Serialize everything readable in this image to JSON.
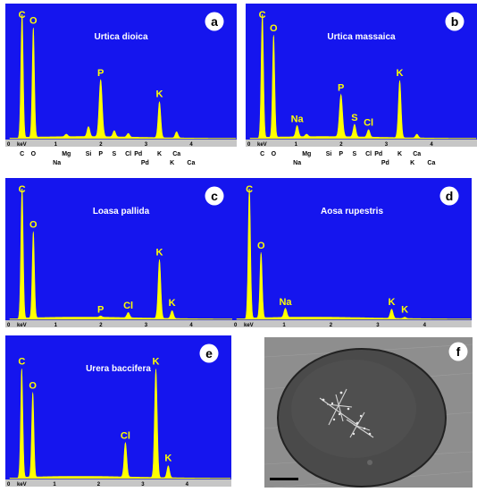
{
  "colors": {
    "plot_bg": "#1515ee",
    "spectrum": "#ffff00",
    "axis_bar": "#c6c6c6",
    "badge_bg": "#ffffff",
    "photo_bg": "#8e8e8e"
  },
  "chart_data": [
    {
      "type": "area",
      "panel_label": "a",
      "title": "Urtica dioica",
      "xlabel": "keV",
      "xlim": [
        0,
        5
      ],
      "x_ticks": [
        "0",
        "1",
        "2",
        "3",
        "4"
      ],
      "peaks": [
        {
          "element": "C",
          "x": 0.27,
          "h": 1.0,
          "w": 0.025
        },
        {
          "element": "O",
          "x": 0.52,
          "h": 0.88,
          "w": 0.025
        },
        {
          "element": "Mg",
          "x": 1.25,
          "h": 0.02,
          "w": 0.03
        },
        {
          "element": "Si",
          "x": 1.74,
          "h": 0.08,
          "w": 0.03
        },
        {
          "element": "P",
          "x": 2.01,
          "h": 0.46,
          "w": 0.035
        },
        {
          "element": "S",
          "x": 2.31,
          "h": 0.05,
          "w": 0.03
        },
        {
          "element": "Cl",
          "x": 2.62,
          "h": 0.03,
          "w": 0.03
        },
        {
          "element": "K",
          "x": 3.31,
          "h": 0.29,
          "w": 0.03
        },
        {
          "element": "Ca",
          "x": 3.69,
          "h": 0.05,
          "w": 0.03
        }
      ],
      "peak_labels": [
        {
          "text": "C",
          "x": 0.27,
          "h": 1.0
        },
        {
          "text": "O",
          "x": 0.52,
          "h": 0.88
        },
        {
          "text": "P",
          "x": 2.01,
          "h": 0.46
        },
        {
          "text": "K",
          "x": 3.31,
          "h": 0.29
        }
      ],
      "marker_row1": [
        {
          "text": "C",
          "x": 0.27
        },
        {
          "text": "O",
          "x": 0.52
        },
        {
          "text": "Mg",
          "x": 1.25
        },
        {
          "text": "Si",
          "x": 1.74
        },
        {
          "text": "P",
          "x": 2.01
        },
        {
          "text": "S",
          "x": 2.31
        },
        {
          "text": "Cl",
          "x": 2.62
        },
        {
          "text": "Pd",
          "x": 2.84
        },
        {
          "text": "K",
          "x": 3.31
        },
        {
          "text": "Ca",
          "x": 3.69
        }
      ],
      "marker_row2": [
        {
          "text": "Na",
          "x": 1.04
        },
        {
          "text": "Pd",
          "x": 2.99
        },
        {
          "text": "K",
          "x": 3.59
        },
        {
          "text": "Ca",
          "x": 4.01
        }
      ]
    },
    {
      "type": "area",
      "panel_label": "b",
      "title": "Urtica massaica",
      "xlabel": "keV",
      "xlim": [
        0,
        5
      ],
      "x_ticks": [
        "0",
        "1",
        "2",
        "3",
        "4"
      ],
      "peaks": [
        {
          "element": "C",
          "x": 0.27,
          "h": 1.0,
          "w": 0.025
        },
        {
          "element": "O",
          "x": 0.52,
          "h": 0.82,
          "w": 0.025
        },
        {
          "element": "Na",
          "x": 1.04,
          "h": 0.09,
          "w": 0.03
        },
        {
          "element": "Mg",
          "x": 1.25,
          "h": 0.02,
          "w": 0.03
        },
        {
          "element": "P",
          "x": 2.01,
          "h": 0.34,
          "w": 0.035
        },
        {
          "element": "S",
          "x": 2.31,
          "h": 0.1,
          "w": 0.03
        },
        {
          "element": "Cl",
          "x": 2.62,
          "h": 0.06,
          "w": 0.03
        },
        {
          "element": "K",
          "x": 3.31,
          "h": 0.46,
          "w": 0.03
        },
        {
          "element": "Ca",
          "x": 3.69,
          "h": 0.03,
          "w": 0.03
        }
      ],
      "peak_labels": [
        {
          "text": "C",
          "x": 0.27,
          "h": 1.0
        },
        {
          "text": "O",
          "x": 0.52,
          "h": 0.82
        },
        {
          "text": "Na",
          "x": 1.04,
          "h": 0.09
        },
        {
          "text": "P",
          "x": 2.01,
          "h": 0.34
        },
        {
          "text": "S",
          "x": 2.31,
          "h": 0.1
        },
        {
          "text": "Cl",
          "x": 2.62,
          "h": 0.06
        },
        {
          "text": "K",
          "x": 3.31,
          "h": 0.46
        }
      ],
      "marker_row1": [
        {
          "text": "C",
          "x": 0.27
        },
        {
          "text": "O",
          "x": 0.52
        },
        {
          "text": "Mg",
          "x": 1.25
        },
        {
          "text": "Si",
          "x": 1.74
        },
        {
          "text": "P",
          "x": 2.01
        },
        {
          "text": "S",
          "x": 2.31
        },
        {
          "text": "Cl",
          "x": 2.62
        },
        {
          "text": "Pd",
          "x": 2.84
        },
        {
          "text": "K",
          "x": 3.31
        },
        {
          "text": "Ca",
          "x": 3.69
        }
      ],
      "marker_row2": [
        {
          "text": "Na",
          "x": 1.04
        },
        {
          "text": "Pd",
          "x": 2.99
        },
        {
          "text": "K",
          "x": 3.59
        },
        {
          "text": "Ca",
          "x": 4.01
        }
      ]
    },
    {
      "type": "area",
      "panel_label": "c",
      "title": "Loasa pallida",
      "xlabel": "keV",
      "xlim": [
        0,
        5
      ],
      "x_ticks": [
        "0",
        "1",
        "2",
        "3",
        "4"
      ],
      "peaks": [
        {
          "element": "C",
          "x": 0.27,
          "h": 1.0,
          "w": 0.025
        },
        {
          "element": "O",
          "x": 0.52,
          "h": 0.66,
          "w": 0.025
        },
        {
          "element": "P",
          "x": 2.01,
          "h": 0.01,
          "w": 0.03
        },
        {
          "element": "Cl",
          "x": 2.62,
          "h": 0.04,
          "w": 0.03
        },
        {
          "element": "K",
          "x": 3.31,
          "h": 0.45,
          "w": 0.03
        },
        {
          "element": "K",
          "x": 3.59,
          "h": 0.06,
          "w": 0.03
        }
      ],
      "peak_labels": [
        {
          "text": "C",
          "x": 0.27,
          "h": 1.0
        },
        {
          "text": "O",
          "x": 0.52,
          "h": 0.66
        },
        {
          "text": "P",
          "x": 2.01,
          "h": 0.01
        },
        {
          "text": "Cl",
          "x": 2.62,
          "h": 0.04
        },
        {
          "text": "K",
          "x": 3.31,
          "h": 0.45
        },
        {
          "text": "K",
          "x": 3.59,
          "h": 0.06
        }
      ],
      "marker_row1": [],
      "marker_row2": []
    },
    {
      "type": "area",
      "panel_label": "d",
      "title": "Aosa rupestris",
      "xlabel": "keV",
      "xlim": [
        0,
        5
      ],
      "x_ticks": [
        "0",
        "1",
        "2",
        "3",
        "4"
      ],
      "peaks": [
        {
          "element": "C",
          "x": 0.27,
          "h": 1.0,
          "w": 0.025
        },
        {
          "element": "O",
          "x": 0.52,
          "h": 0.5,
          "w": 0.025
        },
        {
          "element": "Na",
          "x": 1.04,
          "h": 0.07,
          "w": 0.03
        },
        {
          "element": "K",
          "x": 3.31,
          "h": 0.07,
          "w": 0.03
        },
        {
          "element": "K",
          "x": 3.59,
          "h": 0.01,
          "w": 0.03
        }
      ],
      "peak_labels": [
        {
          "text": "C",
          "x": 0.27,
          "h": 1.0
        },
        {
          "text": "O",
          "x": 0.52,
          "h": 0.5
        },
        {
          "text": "Na",
          "x": 1.04,
          "h": 0.07
        },
        {
          "text": "K",
          "x": 3.31,
          "h": 0.07
        },
        {
          "text": "K",
          "x": 3.59,
          "h": 0.01
        }
      ],
      "marker_row1": [],
      "marker_row2": []
    },
    {
      "type": "area",
      "panel_label": "e",
      "title": "Urera baccifera",
      "xlabel": "keV",
      "xlim": [
        0,
        5
      ],
      "x_ticks": [
        "0",
        "1",
        "2",
        "3",
        "4"
      ],
      "peaks": [
        {
          "element": "C",
          "x": 0.27,
          "h": 0.82,
          "w": 0.025
        },
        {
          "element": "O",
          "x": 0.52,
          "h": 0.64,
          "w": 0.025
        },
        {
          "element": "Cl",
          "x": 2.62,
          "h": 0.26,
          "w": 0.03
        },
        {
          "element": "K",
          "x": 3.31,
          "h": 0.82,
          "w": 0.03
        },
        {
          "element": "K",
          "x": 3.59,
          "h": 0.09,
          "w": 0.03
        }
      ],
      "peak_labels": [
        {
          "text": "C",
          "x": 0.27,
          "h": 0.82
        },
        {
          "text": "O",
          "x": 0.52,
          "h": 0.64
        },
        {
          "text": "Cl",
          "x": 2.62,
          "h": 0.26
        },
        {
          "text": "K",
          "x": 3.31,
          "h": 0.82
        },
        {
          "text": "K",
          "x": 3.59,
          "h": 0.09
        }
      ],
      "marker_row1": [],
      "marker_row2": []
    }
  ],
  "micrograph": {
    "panel_label": "f"
  }
}
